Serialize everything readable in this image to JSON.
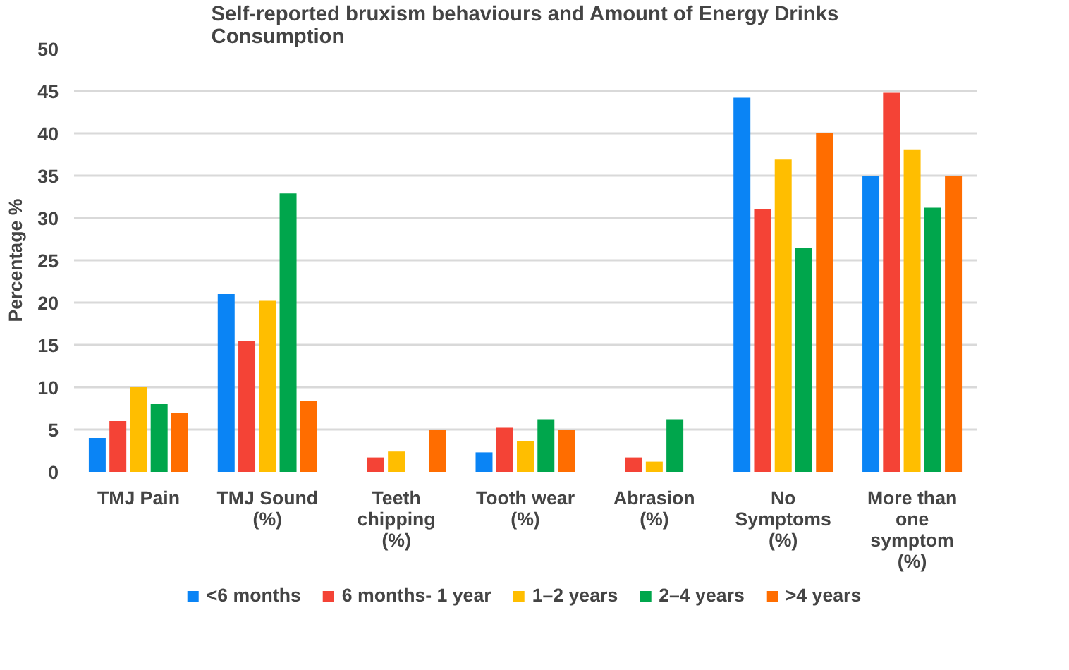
{
  "chart_data": {
    "type": "bar",
    "title": "Self-reported bruxism behaviours and Amount of Energy Drinks Consumption",
    "ylabel": "Percentage %",
    "categories": [
      "TMJ Pain",
      "TMJ Sound (%)",
      "Teeth chipping (%)",
      "Tooth wear (%)",
      "Abrasion (%)",
      "No Symptoms (%)",
      "More than one symptom (%)"
    ],
    "series": [
      {
        "name": "<6 months",
        "color": "#0a84f5",
        "values": [
          4,
          21,
          0,
          2.3,
          0,
          44.2,
          35
        ]
      },
      {
        "name": "6 months- 1 year",
        "color": "#f44336",
        "values": [
          6,
          15.5,
          1.7,
          5.2,
          1.7,
          31,
          44.8
        ]
      },
      {
        "name": "1–2 years",
        "color": "#ffbe00",
        "values": [
          10,
          20.2,
          2.4,
          3.6,
          1.2,
          36.9,
          38.1
        ]
      },
      {
        "name": "2–4 years",
        "color": "#00a64c",
        "values": [
          8,
          32.9,
          0,
          6.2,
          6.2,
          26.5,
          31.2
        ]
      },
      {
        "name": ">4 years",
        "color": "#ff6d00",
        "values": [
          7,
          8.4,
          5,
          5,
          0,
          40,
          35
        ]
      }
    ],
    "ylim": [
      0,
      50
    ],
    "yticks": [
      0,
      5,
      10,
      15,
      20,
      25,
      30,
      35,
      40,
      45,
      50
    ],
    "grid": "y",
    "legend": "bottom"
  }
}
